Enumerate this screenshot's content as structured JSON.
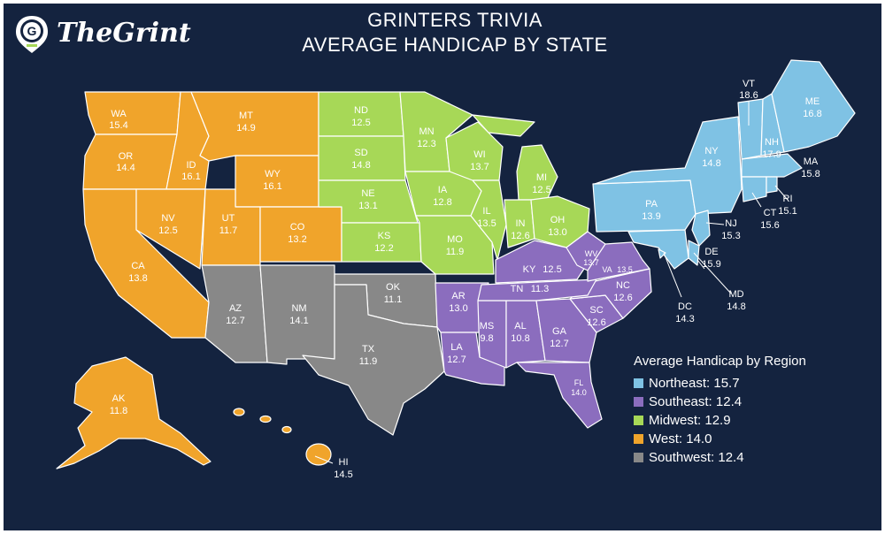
{
  "logo": {
    "text": "TheGrint",
    "badge_letter": "G"
  },
  "title": {
    "line1": "GRINTERS TRIVIA",
    "line2": "AVERAGE HANDICAP BY STATE"
  },
  "colors": {
    "background": "#14233f",
    "West": "#f0a42b",
    "Midwest": "#a7d857",
    "Northeast": "#7fc2e4",
    "Southeast": "#8b6dbe",
    "Southwest": "#888888"
  },
  "legend": {
    "title": "Average Handicap by Region",
    "items": [
      {
        "label": "Northeast: 15.7",
        "region": "Northeast"
      },
      {
        "label": "Southeast: 12.4",
        "region": "Southeast"
      },
      {
        "label": "Midwest: 12.9",
        "region": "Midwest"
      },
      {
        "label": "West: 14.0",
        "region": "West"
      },
      {
        "label": "Southwest: 12.4",
        "region": "Southwest"
      }
    ]
  },
  "states": [
    {
      "abbr": "WA",
      "value": "15.4",
      "region": "West"
    },
    {
      "abbr": "OR",
      "value": "14.4",
      "region": "West"
    },
    {
      "abbr": "CA",
      "value": "13.8",
      "region": "West"
    },
    {
      "abbr": "ID",
      "value": "16.1",
      "region": "West"
    },
    {
      "abbr": "NV",
      "value": "12.5",
      "region": "West"
    },
    {
      "abbr": "MT",
      "value": "14.9",
      "region": "West"
    },
    {
      "abbr": "WY",
      "value": "16.1",
      "region": "West"
    },
    {
      "abbr": "UT",
      "value": "11.7",
      "region": "West"
    },
    {
      "abbr": "CO",
      "value": "13.2",
      "region": "West"
    },
    {
      "abbr": "AK",
      "value": "11.8",
      "region": "West"
    },
    {
      "abbr": "HI",
      "value": "14.5",
      "region": "West"
    },
    {
      "abbr": "ND",
      "value": "12.5",
      "region": "Midwest"
    },
    {
      "abbr": "SD",
      "value": "14.8",
      "region": "Midwest"
    },
    {
      "abbr": "NE",
      "value": "13.1",
      "region": "Midwest"
    },
    {
      "abbr": "KS",
      "value": "12.2",
      "region": "Midwest"
    },
    {
      "abbr": "MN",
      "value": "12.3",
      "region": "Midwest"
    },
    {
      "abbr": "IA",
      "value": "12.8",
      "region": "Midwest"
    },
    {
      "abbr": "MO",
      "value": "11.9",
      "region": "Midwest"
    },
    {
      "abbr": "WI",
      "value": "13.7",
      "region": "Midwest"
    },
    {
      "abbr": "IL",
      "value": "13.5",
      "region": "Midwest"
    },
    {
      "abbr": "MI",
      "value": "12.5",
      "region": "Midwest"
    },
    {
      "abbr": "IN",
      "value": "12.6",
      "region": "Midwest"
    },
    {
      "abbr": "OH",
      "value": "13.0",
      "region": "Midwest"
    },
    {
      "abbr": "AZ",
      "value": "12.7",
      "region": "Southwest"
    },
    {
      "abbr": "NM",
      "value": "14.1",
      "region": "Southwest"
    },
    {
      "abbr": "OK",
      "value": "11.1",
      "region": "Southwest"
    },
    {
      "abbr": "TX",
      "value": "11.9",
      "region": "Southwest"
    },
    {
      "abbr": "AR",
      "value": "13.0",
      "region": "Southeast"
    },
    {
      "abbr": "LA",
      "value": "12.7",
      "region": "Southeast"
    },
    {
      "abbr": "MS",
      "value": "9.8",
      "region": "Southeast"
    },
    {
      "abbr": "AL",
      "value": "10.8",
      "region": "Southeast"
    },
    {
      "abbr": "GA",
      "value": "12.7",
      "region": "Southeast"
    },
    {
      "abbr": "FL",
      "value": "14.0",
      "region": "Southeast"
    },
    {
      "abbr": "SC",
      "value": "12.6",
      "region": "Southeast"
    },
    {
      "abbr": "NC",
      "value": "12.6",
      "region": "Southeast"
    },
    {
      "abbr": "TN",
      "value": "11.3",
      "region": "Southeast"
    },
    {
      "abbr": "KY",
      "value": "12.5",
      "region": "Southeast"
    },
    {
      "abbr": "WV",
      "value": "13.7",
      "region": "Southeast"
    },
    {
      "abbr": "VA",
      "value": "13.5",
      "region": "Southeast"
    },
    {
      "abbr": "PA",
      "value": "13.9",
      "region": "Northeast"
    },
    {
      "abbr": "NY",
      "value": "14.8",
      "region": "Northeast"
    },
    {
      "abbr": "VT",
      "value": "18.6",
      "region": "Northeast"
    },
    {
      "abbr": "NH",
      "value": "17.9",
      "region": "Northeast"
    },
    {
      "abbr": "ME",
      "value": "16.8",
      "region": "Northeast"
    },
    {
      "abbr": "MA",
      "value": "15.8",
      "region": "Northeast"
    },
    {
      "abbr": "RI",
      "value": "15.1",
      "region": "Northeast"
    },
    {
      "abbr": "CT",
      "value": "15.6",
      "region": "Northeast"
    },
    {
      "abbr": "NJ",
      "value": "15.3",
      "region": "Northeast"
    },
    {
      "abbr": "DE",
      "value": "15.9",
      "region": "Northeast"
    },
    {
      "abbr": "MD",
      "value": "14.8",
      "region": "Northeast"
    },
    {
      "abbr": "DC",
      "value": "14.3",
      "region": "Northeast"
    }
  ]
}
